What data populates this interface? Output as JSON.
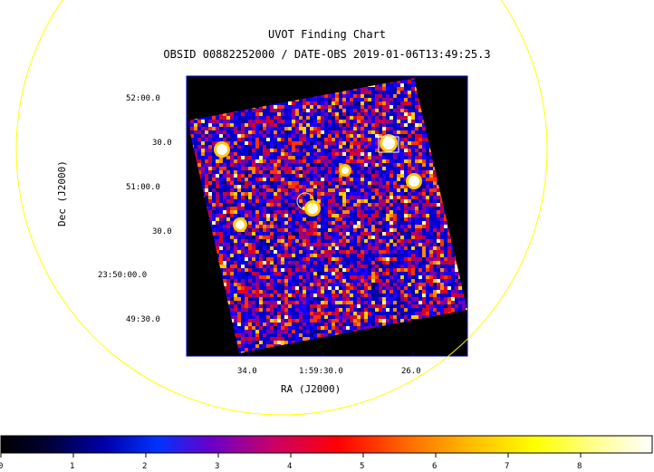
{
  "title": "UVOT Finding Chart",
  "subtitle": "OBSID 00882252000 / DATE-OBS 2019-01-06T13:49:25.3",
  "x_axis": {
    "label": "RA (J2000)",
    "ticks": [
      "34.0",
      "1:59:30.0",
      "26.0"
    ]
  },
  "y_axis": {
    "label": "Dec (J2000)",
    "ticks": [
      "52:00.0",
      "30.0",
      "51:00.0",
      "30.0",
      "23:50:00.0",
      "49:30.0"
    ]
  },
  "colorbar": {
    "ticks": [
      "0",
      "1",
      "2",
      "3",
      "4",
      "5",
      "6",
      "7",
      "8"
    ],
    "colormap": "heat"
  },
  "colors": {
    "circle": "#ffff00",
    "frame": "#0000cc",
    "background": "#000000"
  }
}
